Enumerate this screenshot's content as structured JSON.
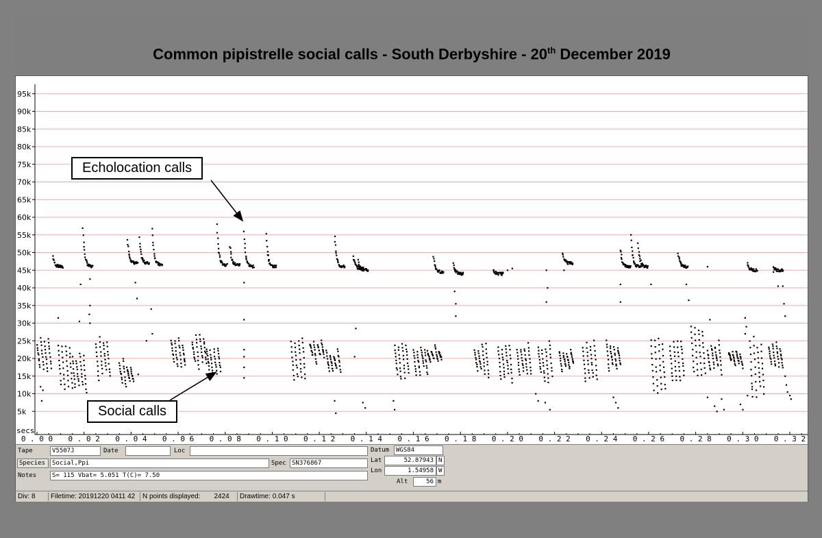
{
  "title": {
    "prefix": "Common pipistrelle social calls - South Derbyshire - 20",
    "suffix_sup": "th",
    "suffix": " December 2019"
  },
  "chart_data": {
    "type": "scatter",
    "xlabel": "secs",
    "xlim": [
      0,
      0.32
    ],
    "ylim": [
      0,
      100000
    ],
    "x_ticks": [
      "0.00",
      "0.02",
      "0.04",
      "0.06",
      "0.08",
      "0.10",
      "0.12",
      "0.14",
      "0.16",
      "0.18",
      "0.20",
      "0.22",
      "0.24",
      "0.26",
      "0.28",
      "0.30",
      "0.32"
    ],
    "y_ticks": [
      "5k",
      "10k",
      "15k",
      "20k",
      "25k",
      "30k",
      "35k",
      "40k",
      "45k",
      "50k",
      "55k",
      "60k",
      "65k",
      "70k",
      "75k",
      "80k",
      "85k",
      "90k",
      "95k"
    ],
    "grid": "horizontal",
    "gridline_color": "#f4a9a9",
    "point_color": "#000000",
    "points_displayed": 2424,
    "echolocation_calls": [
      {
        "t": 0.0068,
        "peak": 49000,
        "end": 46000
      },
      {
        "t": 0.0195,
        "peak": 57000,
        "end": 46000
      },
      {
        "t": 0.0385,
        "peak": 54000,
        "end": 47000
      },
      {
        "t": 0.0435,
        "peak": 54000,
        "end": 47000
      },
      {
        "t": 0.049,
        "peak": 57000,
        "end": 46500
      },
      {
        "t": 0.0765,
        "peak": 58000,
        "end": 46500
      },
      {
        "t": 0.082,
        "peak": 52000,
        "end": 46500
      },
      {
        "t": 0.088,
        "peak": 56000,
        "end": 46000
      },
      {
        "t": 0.0975,
        "peak": 55000,
        "end": 46000
      },
      {
        "t": 0.1265,
        "peak": 55000,
        "end": 46000
      },
      {
        "t": 0.1345,
        "peak": 49000,
        "end": 45500
      },
      {
        "t": 0.1365,
        "peak": 48000,
        "end": 45000
      },
      {
        "t": 0.1685,
        "peak": 49000,
        "end": 44500
      },
      {
        "t": 0.177,
        "peak": 47000,
        "end": 44000
      },
      {
        "t": 0.194,
        "peak": 45000,
        "end": 44000
      },
      {
        "t": 0.2235,
        "peak": 50000,
        "end": 47000
      },
      {
        "t": 0.248,
        "peak": 51000,
        "end": 46000
      },
      {
        "t": 0.2525,
        "peak": 55000,
        "end": 46000
      },
      {
        "t": 0.2555,
        "peak": 53000,
        "end": 46000
      },
      {
        "t": 0.2725,
        "peak": 50000,
        "end": 46000
      },
      {
        "t": 0.302,
        "peak": 47000,
        "end": 45000
      },
      {
        "t": 0.313,
        "peak": 46000,
        "end": 45000
      }
    ],
    "social_calls": [
      {
        "t": 0.0,
        "peak": 26000,
        "end": 16000
      },
      {
        "t": 0.009,
        "peak": 25000,
        "end": 11000
      },
      {
        "t": 0.015,
        "peak": 22000,
        "end": 10000
      },
      {
        "t": 0.025,
        "peak": 27000,
        "end": 14000
      },
      {
        "t": 0.035,
        "peak": 20000,
        "end": 11000
      },
      {
        "t": 0.057,
        "peak": 26000,
        "end": 17000
      },
      {
        "t": 0.066,
        "peak": 27000,
        "end": 17000
      },
      {
        "t": 0.072,
        "peak": 24000,
        "end": 15000
      },
      {
        "t": 0.108,
        "peak": 26000,
        "end": 12000
      },
      {
        "t": 0.116,
        "peak": 26000,
        "end": 18000
      },
      {
        "t": 0.123,
        "peak": 23000,
        "end": 15000
      },
      {
        "t": 0.152,
        "peak": 25000,
        "end": 14000
      },
      {
        "t": 0.16,
        "peak": 25000,
        "end": 15000
      },
      {
        "t": 0.166,
        "peak": 24000,
        "end": 17000
      },
      {
        "t": 0.186,
        "peak": 25000,
        "end": 14000
      },
      {
        "t": 0.196,
        "peak": 25000,
        "end": 13000
      },
      {
        "t": 0.204,
        "peak": 25000,
        "end": 14000
      },
      {
        "t": 0.213,
        "peak": 25000,
        "end": 13000
      },
      {
        "t": 0.222,
        "peak": 23000,
        "end": 16000
      },
      {
        "t": 0.232,
        "peak": 26000,
        "end": 13000
      },
      {
        "t": 0.242,
        "peak": 26000,
        "end": 16000
      },
      {
        "t": 0.261,
        "peak": 26000,
        "end": 9000
      },
      {
        "t": 0.269,
        "peak": 25000,
        "end": 13000
      },
      {
        "t": 0.278,
        "peak": 29000,
        "end": 14000
      },
      {
        "t": 0.285,
        "peak": 25000,
        "end": 15000
      },
      {
        "t": 0.294,
        "peak": 24000,
        "end": 17000
      },
      {
        "t": 0.303,
        "peak": 26000,
        "end": 9000
      },
      {
        "t": 0.311,
        "peak": 25000,
        "end": 16000
      }
    ],
    "scattered_points": [
      [
        0.0015,
        12000
      ],
      [
        0.002,
        8000
      ],
      [
        0.0025,
        11000
      ],
      [
        0.009,
        31500
      ],
      [
        0.0185,
        41000
      ],
      [
        0.018,
        30500
      ],
      [
        0.0225,
        42500
      ],
      [
        0.0225,
        35000
      ],
      [
        0.0222,
        32500
      ],
      [
        0.0225,
        30000
      ],
      [
        0.0418,
        41500
      ],
      [
        0.0425,
        37000
      ],
      [
        0.043,
        15500
      ],
      [
        0.0465,
        25000
      ],
      [
        0.0485,
        34000
      ],
      [
        0.049,
        27000
      ],
      [
        0.088,
        31000
      ],
      [
        0.088,
        41500
      ],
      [
        0.088,
        14500
      ],
      [
        0.088,
        17500
      ],
      [
        0.088,
        20500
      ],
      [
        0.088,
        22500
      ],
      [
        0.1265,
        8000
      ],
      [
        0.127,
        4500
      ],
      [
        0.1355,
        28500
      ],
      [
        0.135,
        20500
      ],
      [
        0.1385,
        7500
      ],
      [
        0.1395,
        6000
      ],
      [
        0.1515,
        8000
      ],
      [
        0.152,
        5500
      ],
      [
        0.1775,
        39000
      ],
      [
        0.178,
        35500
      ],
      [
        0.178,
        32000
      ],
      [
        0.2,
        45000
      ],
      [
        0.202,
        45500
      ],
      [
        0.2165,
        45000
      ],
      [
        0.217,
        40000
      ],
      [
        0.2165,
        36000
      ],
      [
        0.212,
        10000
      ],
      [
        0.213,
        8000
      ],
      [
        0.216,
        7500
      ],
      [
        0.218,
        5500
      ],
      [
        0.224,
        45000
      ],
      [
        0.248,
        41000
      ],
      [
        0.248,
        36000
      ],
      [
        0.245,
        9000
      ],
      [
        0.246,
        7500
      ],
      [
        0.247,
        6000
      ],
      [
        0.261,
        41000
      ],
      [
        0.276,
        41000
      ],
      [
        0.277,
        36500
      ],
      [
        0.285,
        46000
      ],
      [
        0.286,
        31000
      ],
      [
        0.285,
        9000
      ],
      [
        0.288,
        6500
      ],
      [
        0.289,
        5000
      ],
      [
        0.291,
        8500
      ],
      [
        0.292,
        5500
      ],
      [
        0.299,
        7000
      ],
      [
        0.3,
        5500
      ],
      [
        0.301,
        31500
      ],
      [
        0.3015,
        29000
      ],
      [
        0.301,
        27000
      ],
      [
        0.304,
        12000
      ],
      [
        0.302,
        9500
      ],
      [
        0.315,
        40500
      ],
      [
        0.317,
        40500
      ],
      [
        0.3175,
        35500
      ],
      [
        0.318,
        32000
      ],
      [
        0.318,
        15000
      ],
      [
        0.3185,
        12500
      ],
      [
        0.319,
        10500
      ],
      [
        0.32,
        9500
      ],
      [
        0.3205,
        8500
      ],
      [
        0.313,
        44500
      ]
    ],
    "annotations": [
      {
        "text": "Echolocation calls",
        "target_t": 0.088,
        "target_f": 59000
      },
      {
        "text": "Social calls",
        "target_t": 0.072,
        "target_f": 15500
      }
    ]
  },
  "panel": {
    "tape_label": "Tape",
    "tape_value": "V5507J",
    "date_label": "Date",
    "date_value": "",
    "loc_label": "Loc",
    "loc_value": "",
    "species_button": "Species",
    "species_value": "Social,Ppi",
    "spec_label": "Spec",
    "spec_value": "SN376867",
    "notes_label": "Notes",
    "notes_value": "S= 115  Vbat=  5.051  T(C)=   7.50",
    "datum_label": "Datum",
    "datum_value": "WGS84",
    "lat_label": "Lat",
    "lat_value": "52.87943",
    "lat_dir": "N",
    "lon_label": "Lon",
    "lon_value": "1.54958",
    "lon_dir": "W",
    "alt_label": "Alt",
    "alt_value": "56",
    "alt_unit": "m"
  },
  "status": {
    "div": "Div: 8",
    "filetime": "Filetime: 20191220 0411 42",
    "npoints_label": "N points displayed:",
    "npoints_value": "2424",
    "drawtime": "Drawtime: 0.047 s"
  }
}
